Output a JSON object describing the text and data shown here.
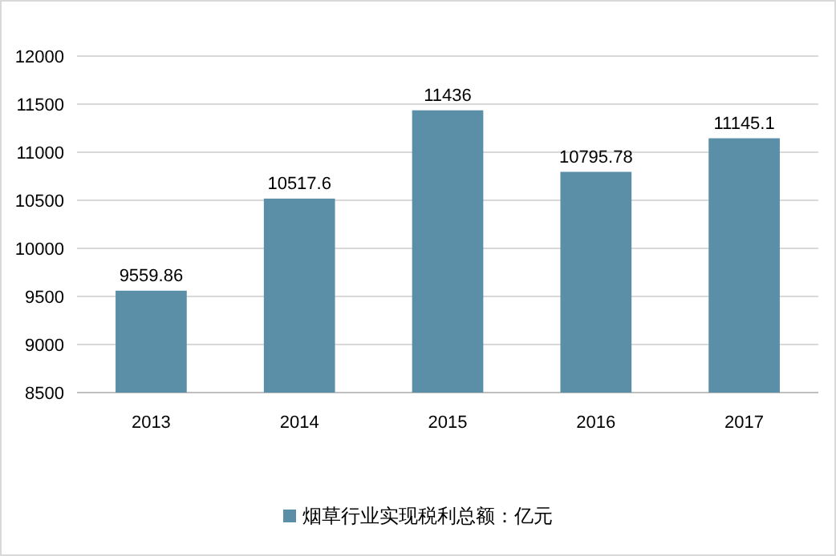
{
  "chart_data": {
    "type": "bar",
    "categories": [
      "2013",
      "2014",
      "2015",
      "2016",
      "2017"
    ],
    "series": [
      {
        "name": "烟草行业实现税利总额：亿元",
        "color": "#5b8fa8",
        "values": [
          9559.86,
          10517.6,
          11436,
          10795.78,
          11145.1
        ]
      }
    ],
    "ylim": [
      8500,
      12000
    ],
    "yticks": [
      8500,
      9000,
      9500,
      10000,
      10500,
      11000,
      11500,
      12000
    ],
    "grid": "y",
    "legend": "bottom",
    "data_labels": true
  }
}
